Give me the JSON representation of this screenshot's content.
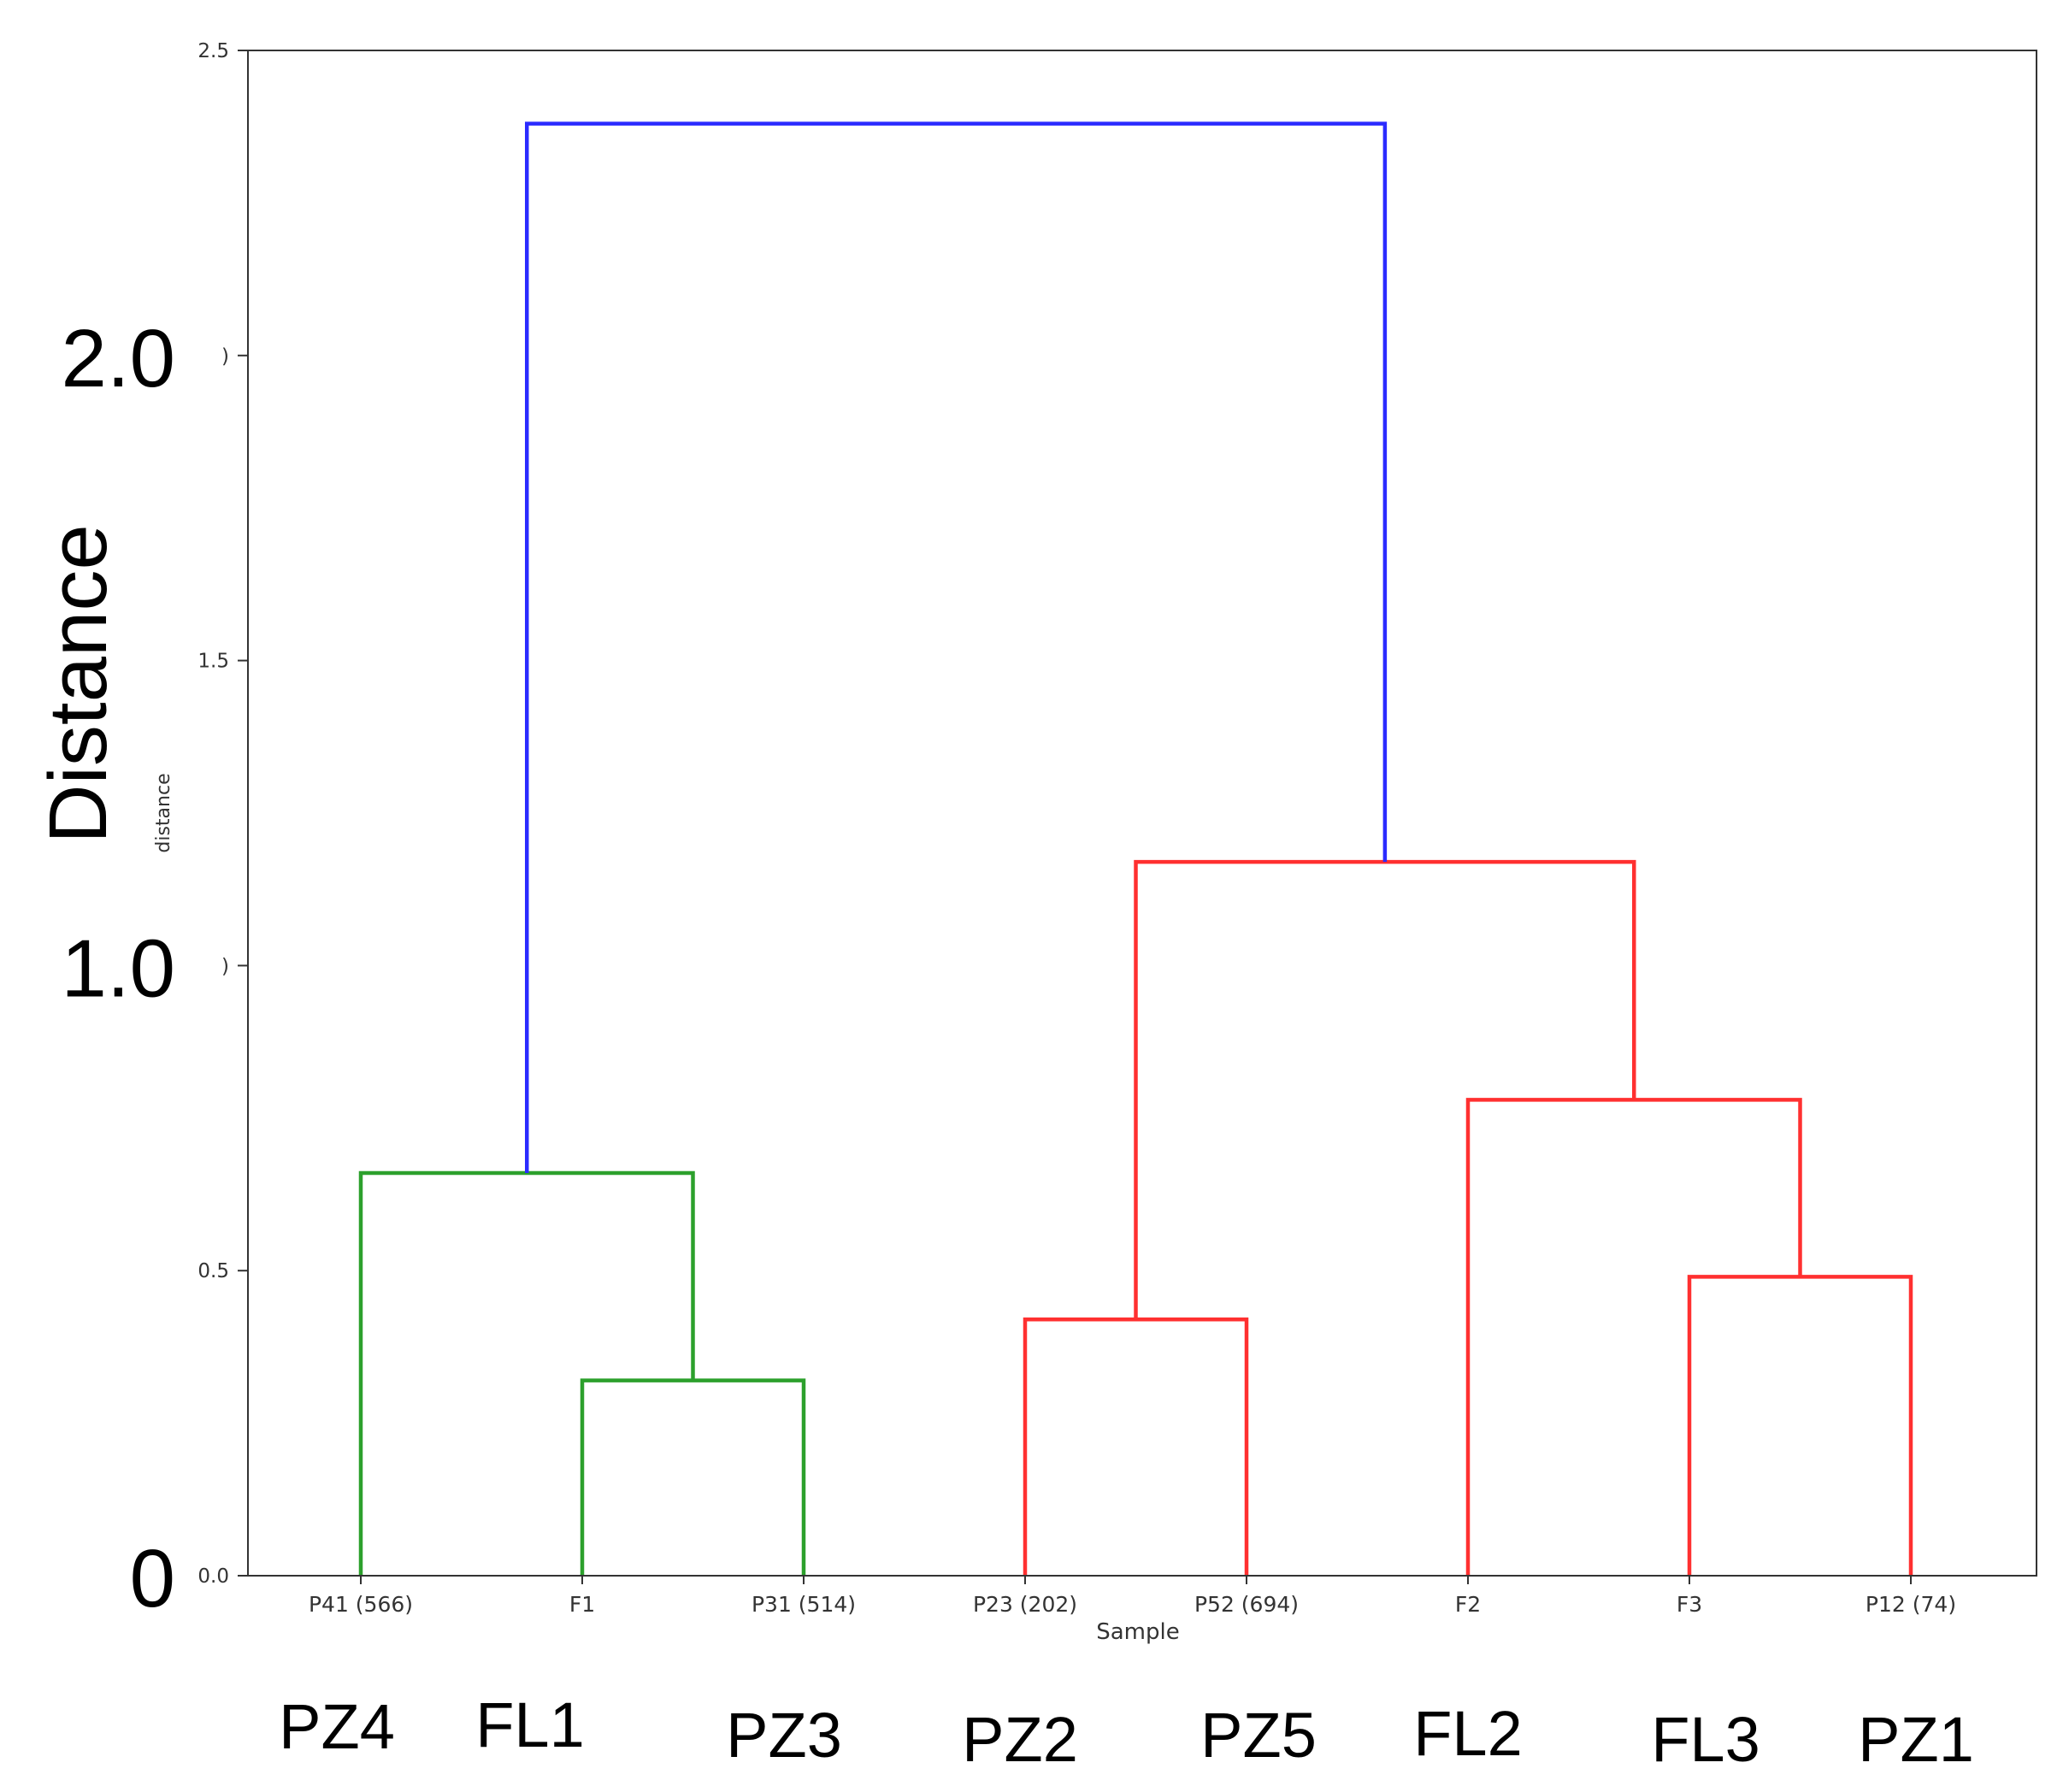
{
  "chart_data": {
    "type": "dendrogram",
    "xlabel": "Sample",
    "ylabel": "distance",
    "ylabel_overlay": "Distance",
    "ylim": [
      0,
      2.5
    ],
    "yticks": [
      {
        "value": 0.0,
        "label": "0.0"
      },
      {
        "value": 0.5,
        "label": "0.5"
      },
      {
        "value": 1.0,
        "label": ")"
      },
      {
        "value": 1.5,
        "label": "1.5"
      },
      {
        "value": 2.0,
        "label": ")"
      },
      {
        "value": 2.5,
        "label": "2.5"
      }
    ],
    "overlay_yticks": [
      {
        "value": 0.0,
        "label": "0"
      },
      {
        "value": 1.0,
        "label": "1.0"
      },
      {
        "value": 2.0,
        "label": "2.0"
      }
    ],
    "leaves": [
      {
        "label": "P41 (566)",
        "overlay": "PZ4"
      },
      {
        "label": "F1",
        "overlay": "FL1"
      },
      {
        "label": "P31 (514)",
        "overlay": "PZ3"
      },
      {
        "label": "P23 (202)",
        "overlay": "PZ2"
      },
      {
        "label": "P52 (694)",
        "overlay": "PZ5"
      },
      {
        "label": "F2",
        "overlay": "FL2"
      },
      {
        "label": "F3",
        "overlay": "FL3"
      },
      {
        "label": "P12 (74)",
        "overlay": "PZ1"
      }
    ],
    "links": [
      {
        "left": [
          1.0,
          0.0
        ],
        "right": [
          2.0,
          0.0
        ],
        "height": 0.32,
        "color": "#2ca02c"
      },
      {
        "left": [
          0.0,
          0.0
        ],
        "right": [
          1.5,
          0.32
        ],
        "height": 0.66,
        "color": "#2ca02c"
      },
      {
        "left": [
          3.0,
          0.0
        ],
        "right": [
          4.0,
          0.0
        ],
        "height": 0.42,
        "color": "#ff3030"
      },
      {
        "left": [
          6.0,
          0.0
        ],
        "right": [
          7.0,
          0.0
        ],
        "height": 0.49,
        "color": "#ff3030"
      },
      {
        "left": [
          5.0,
          0.0
        ],
        "right": [
          6.5,
          0.49
        ],
        "height": 0.78,
        "color": "#ff3030"
      },
      {
        "left": [
          3.5,
          0.42
        ],
        "right": [
          5.75,
          0.78
        ],
        "height": 1.17,
        "color": "#ff3030"
      },
      {
        "left": [
          0.75,
          0.66
        ],
        "right": [
          4.625,
          1.17
        ],
        "height": 2.38,
        "color": "#2b2bff"
      }
    ]
  }
}
